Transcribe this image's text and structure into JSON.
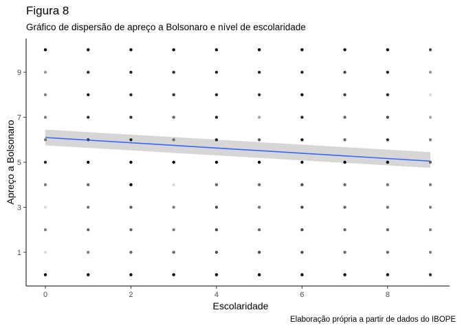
{
  "chart_data": {
    "type": "scatter",
    "title": "Figura 8",
    "subtitle": "Gráfico de dispersão de apreço a Bolsonaro e nível de escolaridade",
    "caption": "Elaboração própria a partir de dados do IBOPE",
    "xlabel": "Escolaridade",
    "ylabel": "Apreço a Bolsonaro",
    "xlim": [
      -0.45,
      9.45
    ],
    "ylim": [
      -0.5,
      10.5
    ],
    "xticks": [
      0,
      2,
      4,
      6,
      8
    ],
    "yticks": [
      1,
      3,
      5,
      7,
      9
    ],
    "grid": false,
    "point_color": "#000000",
    "trend_color": "#3366ff",
    "band_color": "#c8c8c8",
    "points": [
      [
        0,
        0,
        1.0
      ],
      [
        0,
        1,
        0.15
      ],
      [
        0,
        2,
        0.5
      ],
      [
        0,
        3,
        0.15
      ],
      [
        0,
        4,
        0.5
      ],
      [
        0,
        5,
        0.85
      ],
      [
        0,
        6,
        0.5
      ],
      [
        0,
        7,
        0.5
      ],
      [
        0,
        8,
        0.5
      ],
      [
        0,
        9,
        0.4
      ],
      [
        0,
        10,
        1.0
      ],
      [
        1,
        0,
        1.0
      ],
      [
        1,
        1,
        0.5
      ],
      [
        1,
        2,
        0.6
      ],
      [
        1,
        3,
        0.55
      ],
      [
        1,
        4,
        0.6
      ],
      [
        1,
        5,
        1.0
      ],
      [
        1,
        6,
        0.85
      ],
      [
        1,
        7,
        0.8
      ],
      [
        1,
        8,
        0.9
      ],
      [
        1,
        9,
        0.8
      ],
      [
        1,
        10,
        1.0
      ],
      [
        2,
        0,
        1.0
      ],
      [
        2,
        1,
        0.6
      ],
      [
        2,
        2,
        0.6
      ],
      [
        2,
        3,
        0.65
      ],
      [
        2,
        4,
        1.0
      ],
      [
        2,
        5,
        1.0
      ],
      [
        2,
        6,
        0.85
      ],
      [
        2,
        7,
        0.8
      ],
      [
        2,
        8,
        0.85
      ],
      [
        2,
        9,
        0.85
      ],
      [
        2,
        10,
        1.0
      ],
      [
        3,
        0,
        1.0
      ],
      [
        3,
        1,
        0.6
      ],
      [
        3,
        2,
        0.5
      ],
      [
        3,
        3,
        0.5
      ],
      [
        3,
        4,
        0.15
      ],
      [
        3,
        5,
        1.0
      ],
      [
        3,
        6,
        0.5
      ],
      [
        3,
        7,
        0.6
      ],
      [
        3,
        8,
        0.8
      ],
      [
        3,
        9,
        0.8
      ],
      [
        3,
        10,
        1.0
      ],
      [
        4,
        0,
        1.0
      ],
      [
        4,
        1,
        0.7
      ],
      [
        4,
        2,
        0.7
      ],
      [
        4,
        3,
        0.7
      ],
      [
        4,
        4,
        0.6
      ],
      [
        4,
        5,
        1.0
      ],
      [
        4,
        6,
        0.85
      ],
      [
        4,
        7,
        0.85
      ],
      [
        4,
        8,
        0.85
      ],
      [
        4,
        9,
        0.85
      ],
      [
        4,
        10,
        1.0
      ],
      [
        5,
        0,
        1.0
      ],
      [
        5,
        1,
        0.7
      ],
      [
        5,
        2,
        0.6
      ],
      [
        5,
        3,
        0.55
      ],
      [
        5,
        4,
        0.6
      ],
      [
        5,
        5,
        1.0
      ],
      [
        5,
        6,
        0.65
      ],
      [
        5,
        7,
        0.35
      ],
      [
        5,
        8,
        0.8
      ],
      [
        5,
        9,
        0.85
      ],
      [
        5,
        10,
        1.0
      ],
      [
        6,
        0,
        1.0
      ],
      [
        6,
        1,
        0.7
      ],
      [
        6,
        2,
        0.7
      ],
      [
        6,
        3,
        0.75
      ],
      [
        6,
        4,
        0.7
      ],
      [
        6,
        5,
        1.0
      ],
      [
        6,
        6,
        0.9
      ],
      [
        6,
        7,
        0.85
      ],
      [
        6,
        8,
        1.0
      ],
      [
        6,
        9,
        0.85
      ],
      [
        6,
        10,
        1.0
      ],
      [
        7,
        0,
        1.0
      ],
      [
        7,
        1,
        0.6
      ],
      [
        7,
        2,
        0.6
      ],
      [
        7,
        3,
        0.6
      ],
      [
        7,
        4,
        0.6
      ],
      [
        7,
        5,
        1.0
      ],
      [
        7,
        6,
        0.6
      ],
      [
        7,
        7,
        0.6
      ],
      [
        7,
        8,
        0.75
      ],
      [
        7,
        9,
        0.7
      ],
      [
        7,
        10,
        1.0
      ],
      [
        8,
        0,
        1.0
      ],
      [
        8,
        1,
        0.6
      ],
      [
        8,
        2,
        0.6
      ],
      [
        8,
        3,
        0.55
      ],
      [
        8,
        4,
        0.55
      ],
      [
        8,
        5,
        1.0
      ],
      [
        8,
        6,
        0.8
      ],
      [
        8,
        7,
        0.7
      ],
      [
        8,
        8,
        0.85
      ],
      [
        8,
        9,
        0.85
      ],
      [
        8,
        10,
        1.0
      ],
      [
        9,
        0,
        0.8
      ],
      [
        9,
        1,
        0.5
      ],
      [
        9,
        2,
        0.5
      ],
      [
        9,
        3,
        0.5
      ],
      [
        9,
        4,
        0.5
      ],
      [
        9,
        5,
        0.6
      ],
      [
        9,
        6,
        0.5
      ],
      [
        9,
        7,
        0.35
      ],
      [
        9,
        8,
        0.15
      ],
      [
        9,
        9,
        0.4
      ],
      [
        9,
        10,
        0.7
      ]
    ],
    "trend": {
      "x": [
        0,
        9
      ],
      "y": [
        6.1,
        5.05
      ],
      "band_lower": [
        5.75,
        4.75
      ],
      "band_upper": [
        6.45,
        5.45
      ]
    }
  }
}
